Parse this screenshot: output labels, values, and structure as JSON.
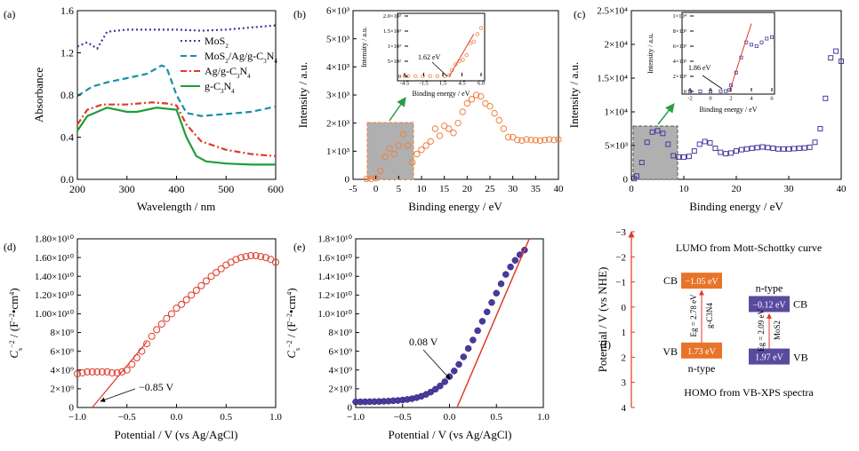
{
  "panel_labels": [
    "(a)",
    "(b)",
    "(c)",
    "(d)",
    "(e)",
    "(f)"
  ],
  "chart_data": [
    {
      "panel": "(a)",
      "type": "line",
      "xlabel": "Wavelength / nm",
      "ylabel": "Absorbance",
      "xlim": [
        200,
        600
      ],
      "ylim": [
        0.0,
        1.6
      ],
      "xticks": [
        "200",
        "300",
        "400",
        "500",
        "600"
      ],
      "yticks": [
        "0.0",
        "0.4",
        "0.8",
        "1.2",
        "1.6"
      ],
      "legend_position": "right",
      "series": [
        {
          "name": "MoS2",
          "color": "#3a3a9e",
          "style": "dotted",
          "x": [
            200,
            220,
            240,
            260,
            300,
            350,
            400,
            450,
            500,
            550,
            600
          ],
          "y": [
            1.26,
            1.3,
            1.24,
            1.4,
            1.42,
            1.42,
            1.42,
            1.41,
            1.42,
            1.44,
            1.46
          ]
        },
        {
          "name": "MoS2/Ag/g-C3N4",
          "color": "#1a8fa5",
          "style": "dashed",
          "x": [
            200,
            230,
            260,
            300,
            340,
            370,
            380,
            400,
            420,
            450,
            500,
            550,
            600
          ],
          "y": [
            0.79,
            0.88,
            0.92,
            0.96,
            1.0,
            1.08,
            1.06,
            0.8,
            0.63,
            0.6,
            0.62,
            0.64,
            0.69
          ]
        },
        {
          "name": "Ag/g-C3N4",
          "color": "#e03a2a",
          "style": "dashdot",
          "x": [
            200,
            220,
            250,
            300,
            350,
            380,
            400,
            420,
            450,
            500,
            550,
            600
          ],
          "y": [
            0.52,
            0.66,
            0.71,
            0.71,
            0.73,
            0.72,
            0.7,
            0.52,
            0.36,
            0.28,
            0.24,
            0.22
          ]
        },
        {
          "name": "g-C3N4",
          "color": "#1f9d3a",
          "style": "solid",
          "x": [
            200,
            220,
            260,
            300,
            320,
            360,
            400,
            420,
            440,
            460,
            500,
            550,
            600
          ],
          "y": [
            0.46,
            0.6,
            0.68,
            0.64,
            0.64,
            0.68,
            0.66,
            0.4,
            0.22,
            0.17,
            0.15,
            0.14,
            0.14
          ]
        }
      ]
    },
    {
      "panel": "(b)",
      "type": "scatter",
      "xlabel": "Binding energy / eV",
      "ylabel": "Intensity / a.u.",
      "xlim": [
        -5,
        40
      ],
      "ylim": [
        0,
        6000
      ],
      "xticks": [
        "-5",
        "0",
        "5",
        "10",
        "15",
        "20",
        "25",
        "30",
        "35",
        "40"
      ],
      "yticks": [
        "0",
        "1×10³",
        "2×10³",
        "3×10³",
        "4×10³",
        "5×10³",
        "6×10³"
      ],
      "series": [
        {
          "color": "#f08040",
          "x": [
            -2,
            -1,
            0,
            1,
            2,
            3,
            4,
            5,
            6,
            7,
            8,
            9,
            10,
            11,
            12,
            13,
            14,
            15,
            16,
            17,
            18,
            19,
            20,
            21,
            22,
            23,
            24,
            25,
            26,
            27,
            28,
            29,
            30,
            31,
            32,
            33,
            34,
            35,
            36,
            37,
            38,
            39,
            40
          ],
          "y": [
            20,
            20,
            40,
            300,
            800,
            1100,
            900,
            1200,
            1600,
            1200,
            600,
            900,
            1050,
            1200,
            1350,
            1800,
            1550,
            1900,
            1800,
            1650,
            2000,
            2400,
            2700,
            2850,
            3000,
            2950,
            2700,
            2600,
            2350,
            2100,
            1800,
            1500,
            1500,
            1400,
            1380,
            1420,
            1400,
            1390,
            1380,
            1400,
            1420,
            1400,
            1420
          ]
        }
      ],
      "annotations": [
        "1.62 eV"
      ],
      "inset": {
        "xlabel": "Binding energy / eV",
        "ylabel": "Intensity / a.u.",
        "xticks": [
          "-4.5",
          "-1.5",
          "1.5",
          "4.5",
          "6.0"
        ],
        "yticks": [
          "0",
          "5×10²",
          "1×10³",
          "1.5×10³",
          "2.0×10³"
        ],
        "xlim": [
          -4.5,
          6.0
        ],
        "ylim": [
          0,
          2000
        ],
        "x": [
          -4.5,
          -4,
          -3,
          -2,
          -1,
          0,
          1,
          1.62,
          2,
          2.5,
          3,
          3.5,
          4,
          4.5,
          5,
          5.5,
          6
        ],
        "y": [
          5,
          5,
          5,
          5,
          5,
          5,
          10,
          30,
          200,
          400,
          500,
          550,
          700,
          1100,
          1150,
          1400,
          1600
        ]
      }
    },
    {
      "panel": "(c)",
      "type": "scatter",
      "xlabel": "Binding energy / eV",
      "ylabel": "Intensity / a.u.",
      "xlim": [
        0,
        40
      ],
      "ylim": [
        0,
        25000
      ],
      "xticks": [
        "0",
        "10",
        "20",
        "30",
        "40"
      ],
      "yticks": [
        "0",
        "5×10³",
        "1×10⁴",
        "1.5×10⁴",
        "2×10⁴",
        "2.5×10⁴"
      ],
      "series": [
        {
          "color": "#4a3a9e",
          "x": [
            0.5,
            1,
            2,
            3,
            4,
            5,
            6,
            7,
            8,
            9,
            10,
            11,
            12,
            13,
            14,
            15,
            16,
            17,
            18,
            19,
            20,
            21,
            22,
            23,
            24,
            25,
            26,
            27,
            28,
            29,
            30,
            31,
            32,
            33,
            34,
            35,
            36,
            37,
            38,
            39,
            40
          ],
          "y": [
            100,
            500,
            2500,
            5500,
            7000,
            7200,
            6800,
            5200,
            3500,
            3300,
            3300,
            3400,
            4200,
            5200,
            5600,
            5400,
            4600,
            4000,
            3800,
            3900,
            4200,
            4400,
            4500,
            4600,
            4700,
            4800,
            4700,
            4600,
            4500,
            4500,
            4500,
            4550,
            4600,
            4650,
            4750,
            5500,
            7500,
            12000,
            18000,
            19000,
            17500
          ]
        }
      ],
      "annotations": [
        "1.86 eV"
      ],
      "inset": {
        "xlabel": "Binding energy / eV",
        "ylabel": "Intensity / a.u.",
        "xticks": [
          "-2",
          "0",
          "2",
          "4",
          "6"
        ],
        "yticks": [
          "0",
          "2×10³",
          "4×10³",
          "6×10³",
          "8×10³",
          "1×10⁴"
        ],
        "xlim": [
          -2,
          6
        ],
        "ylim": [
          0,
          10000
        ],
        "x": [
          -2,
          -1,
          0,
          1,
          1.5,
          1.86,
          2,
          2.5,
          3,
          3.5,
          4,
          4.5,
          5,
          5.5,
          6
        ],
        "y": [
          20,
          20,
          20,
          30,
          50,
          200,
          800,
          2500,
          4500,
          6500,
          6200,
          6000,
          6500,
          7000,
          7200
        ]
      }
    },
    {
      "panel": "(d)",
      "type": "scatter",
      "xlabel": "Potential / V (vs Ag/AgCl)",
      "ylabel": "C⁻² / (F⁻²•cm⁴)",
      "xlim": [
        -1.0,
        1.0
      ],
      "ylim": [
        0,
        18000000000.0
      ],
      "xticks": [
        "−1.0",
        "−0.5",
        "0.0",
        "0.5",
        "1.0"
      ],
      "yticks": [
        "0",
        "2×10⁹",
        "4×10⁹",
        "6×10⁹",
        "8×10⁹",
        "1.00×10¹⁰",
        "1.20×10¹⁰",
        "1.40×10¹⁰",
        "1.60×10¹⁰",
        "1.80×10¹⁰"
      ],
      "series": [
        {
          "color": "#e03a2a",
          "x": [
            -1.0,
            -0.95,
            -0.9,
            -0.85,
            -0.8,
            -0.75,
            -0.7,
            -0.65,
            -0.6,
            -0.55,
            -0.5,
            -0.45,
            -0.4,
            -0.35,
            -0.3,
            -0.25,
            -0.2,
            -0.15,
            -0.1,
            -0.05,
            0.0,
            0.05,
            0.1,
            0.15,
            0.2,
            0.25,
            0.3,
            0.35,
            0.4,
            0.45,
            0.5,
            0.55,
            0.6,
            0.65,
            0.7,
            0.75,
            0.8,
            0.85,
            0.9,
            0.95,
            1.0
          ],
          "y": [
            3600000000.0,
            3700000000.0,
            3800000000.0,
            3800000000.0,
            3800000000.0,
            3800000000.0,
            3800000000.0,
            3700000000.0,
            3700000000.0,
            3800000000.0,
            4000000000.0,
            4600000000.0,
            5300000000.0,
            6000000000.0,
            6800000000.0,
            7600000000.0,
            8300000000.0,
            8900000000.0,
            9500000000.0,
            10000000000.0,
            10600000000.0,
            11000000000.0,
            11500000000.0,
            12000000000.0,
            12500000000.0,
            13000000000.0,
            13500000000.0,
            14000000000.0,
            14400000000.0,
            14800000000.0,
            15200000000.0,
            15500000000.0,
            15800000000.0,
            16000000000.0,
            16100000000.0,
            16200000000.0,
            16200000000.0,
            16100000000.0,
            16000000000.0,
            15800000000.0,
            15500000000.0
          ]
        }
      ],
      "fit_line": {
        "x": [
          -0.85,
          -0.3
        ],
        "y": [
          0,
          7000000000.0
        ]
      },
      "annotation": "−0.85 V"
    },
    {
      "panel": "(e)",
      "type": "scatter",
      "xlabel": "Potential / V (vs Ag/AgCl)",
      "ylabel": "C⁻² / (F⁻²•cm⁴)",
      "xlim": [
        -1.0,
        1.0
      ],
      "ylim": [
        0,
        18000000000.0
      ],
      "xticks": [
        "−1.0",
        "−0.5",
        "0.0",
        "0.5",
        "1.0"
      ],
      "yticks": [
        "0",
        "2×10⁹",
        "4×10⁹",
        "6×10⁹",
        "8×10⁹",
        "1.0×10¹⁰",
        "1.2×10¹⁰",
        "1.4×10¹⁰",
        "1.6×10¹⁰",
        "1.8×10¹⁰"
      ],
      "series": [
        {
          "color": "#4a3a9e",
          "x": [
            -1.0,
            -0.95,
            -0.9,
            -0.85,
            -0.8,
            -0.75,
            -0.7,
            -0.65,
            -0.6,
            -0.55,
            -0.5,
            -0.45,
            -0.4,
            -0.35,
            -0.3,
            -0.25,
            -0.2,
            -0.15,
            -0.1,
            -0.05,
            0.0,
            0.05,
            0.1,
            0.15,
            0.2,
            0.25,
            0.3,
            0.35,
            0.4,
            0.45,
            0.5,
            0.55,
            0.6,
            0.65,
            0.7,
            0.75,
            0.8
          ],
          "y": [
            600000000.0,
            600000000.0,
            610000000.0,
            620000000.0,
            630000000.0,
            640000000.0,
            660000000.0,
            680000000.0,
            720000000.0,
            750000000.0,
            800000000.0,
            860000000.0,
            940000000.0,
            1050000000.0,
            1200000000.0,
            1400000000.0,
            1650000000.0,
            1950000000.0,
            2300000000.0,
            2750000000.0,
            3300000000.0,
            3900000000.0,
            4600000000.0,
            5400000000.0,
            6300000000.0,
            7200000000.0,
            8200000000.0,
            9200000000.0,
            10200000000.0,
            11200000000.0,
            12200000000.0,
            13200000000.0,
            14200000000.0,
            15000000000.0,
            15700000000.0,
            16300000000.0,
            16800000000.0
          ]
        }
      ],
      "fit_line": {
        "x": [
          0.08,
          0.85
        ],
        "y": [
          0,
          18000000000.0
        ]
      },
      "annotation": "0.08 V"
    },
    {
      "panel": "(f)",
      "type": "diagram",
      "ylabel": "Potential / V (vs NHE)",
      "ylim": [
        -3,
        4
      ],
      "yticks": [
        "−3",
        "−2",
        "−1",
        "0",
        "1",
        "2",
        "3",
        "4"
      ],
      "title_top": "LUMO from Mott-Schottky curve",
      "title_bottom": "HOMO from VB-XPS spectra",
      "gcn": {
        "cb_value": -1.05,
        "vb_value": 1.73,
        "cb_text": "−1.05 eV",
        "vb_text": "1.73 eV",
        "cb_label": "CB",
        "vb_label": "VB",
        "type": "n-type",
        "gap": "Eg = 2.78 eV",
        "material": "g-C3N4",
        "color": "#e8742a"
      },
      "mos2": {
        "cb_value": -0.12,
        "vb_value": 1.97,
        "cb_text": "−0.12 eV",
        "vb_text": "1.97 eV",
        "cb_label": "CB",
        "vb_label": "VB",
        "type": "n-type",
        "gap": "Eg = 2.09 eV",
        "material": "MoS2",
        "color": "#5a4a9e"
      }
    }
  ]
}
